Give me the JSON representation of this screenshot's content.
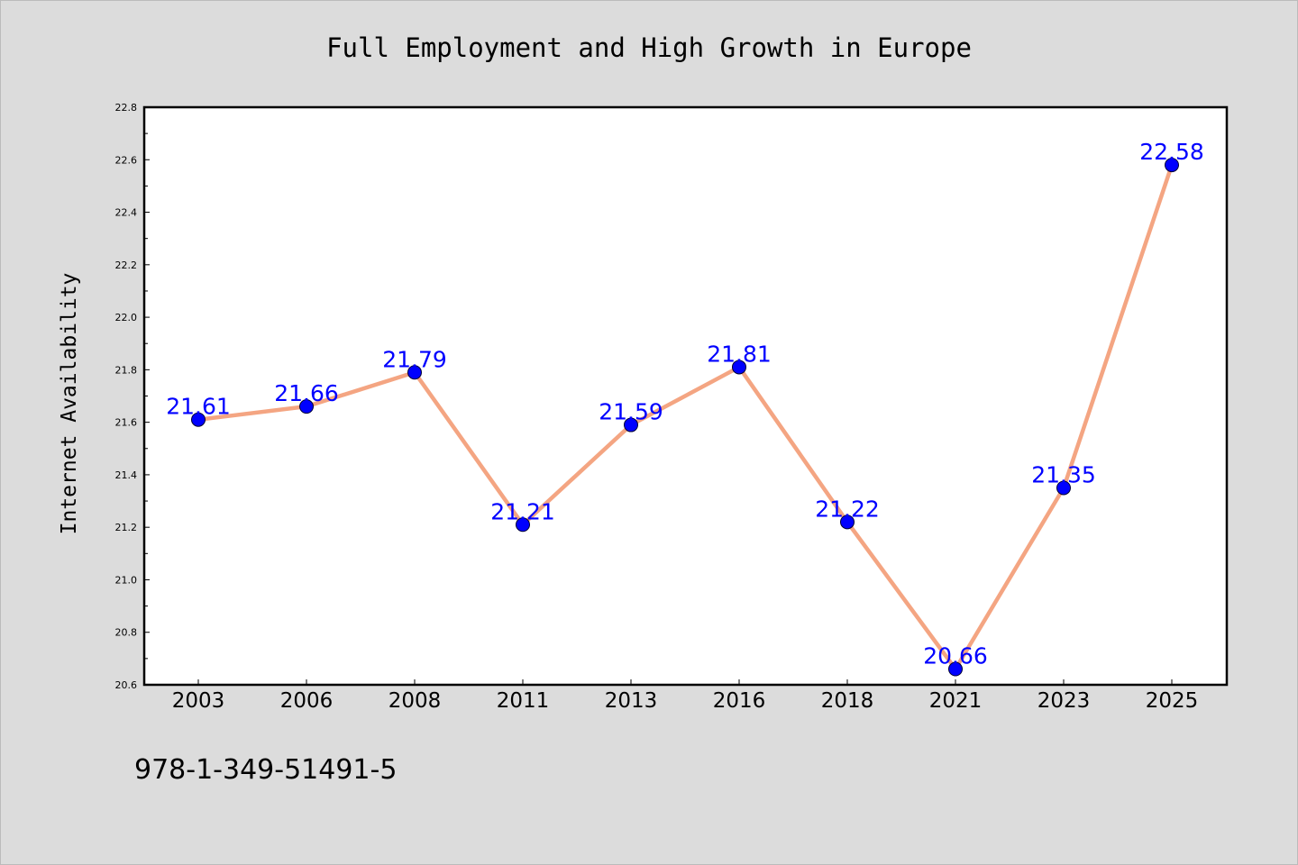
{
  "chart_data": {
    "type": "line",
    "title": "Full Employment and High Growth in Europe",
    "ylabel": "Internet Availability",
    "categories": [
      "2003",
      "2006",
      "2008",
      "2011",
      "2013",
      "2016",
      "2018",
      "2021",
      "2023",
      "2025"
    ],
    "series": [
      {
        "values": [
          21.61,
          21.66,
          21.79,
          21.21,
          21.59,
          21.81,
          21.22,
          20.66,
          21.35,
          22.58
        ]
      }
    ],
    "data_labels": [
      "21.61",
      "21.66",
      "21.79",
      "21.21",
      "21.59",
      "21.81",
      "21.22",
      "20.66",
      "21.35",
      "22.58"
    ],
    "ylim": [
      20.6,
      22.8
    ],
    "yticks": [
      "20.6",
      "20.8",
      "21.0",
      "21.2",
      "21.4",
      "21.6",
      "21.8",
      "22.0",
      "22.2",
      "22.4",
      "22.6",
      "22.8"
    ],
    "grid": false,
    "legend": "none",
    "colors": {
      "line": "#f4a582",
      "marker": "#0000ff",
      "data_label": "#0000ff",
      "background": "#dcdcdc",
      "plot_background": "#ffffff"
    }
  },
  "footer": "978-1-349-51491-5"
}
